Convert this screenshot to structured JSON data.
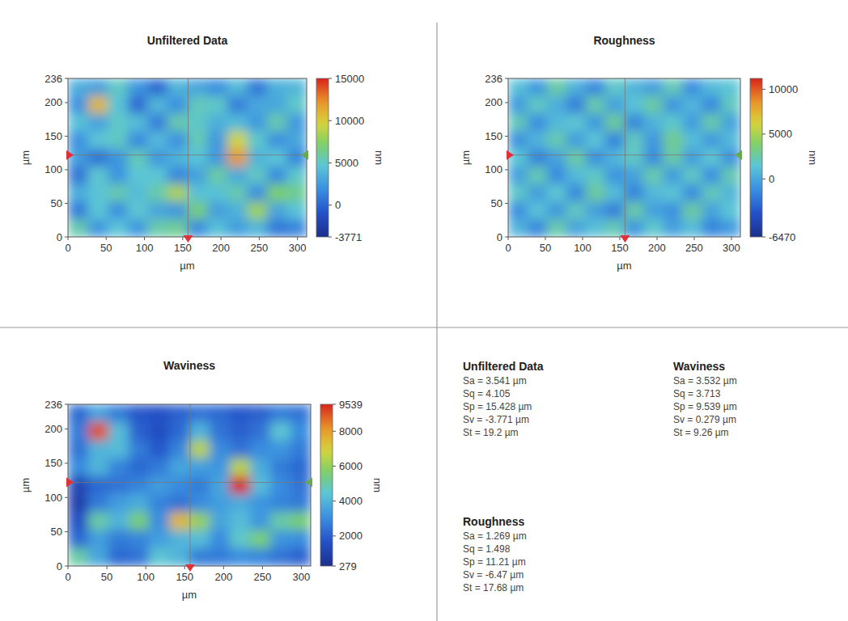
{
  "chart_data": [
    {
      "type": "heatmap",
      "title": "Unfiltered Data",
      "x_label": "µm",
      "y_label": "µm",
      "xlim": [
        0,
        312
      ],
      "ylim": [
        0,
        236
      ],
      "xticks": [
        0,
        50,
        100,
        150,
        200,
        250,
        300
      ],
      "yticks": [
        0,
        50,
        100,
        150,
        200,
        236
      ],
      "colorbar_label": "nm",
      "colorbar_range": [
        -3771,
        15000
      ],
      "colorbar_ticks": [
        15000,
        10000,
        5000,
        0,
        -3771
      ],
      "crosshair": {
        "x": 157,
        "y": 122
      },
      "cells": [
        [
          3400,
          2700,
          5100,
          2200,
          100,
          3800,
          3000,
          1800,
          4000,
          800,
          3500,
          3900
        ],
        [
          2000,
          10900,
          4500,
          200,
          3900,
          1900,
          5300,
          5000,
          1100,
          3100,
          3100,
          5000
        ],
        [
          4500,
          2800,
          5000,
          4200,
          1100,
          5600,
          5000,
          3500,
          4100,
          2400,
          5600,
          2300
        ],
        [
          2000,
          4600,
          5100,
          1700,
          4000,
          2000,
          5400,
          2400,
          9500,
          4900,
          1900,
          3100
        ],
        [
          2700,
          500,
          2200,
          5400,
          2300,
          3700,
          4500,
          2300,
          12000,
          3700,
          4600,
          1400
        ],
        [
          600,
          4800,
          2100,
          4700,
          4600,
          1500,
          2800,
          5800,
          3200,
          5100,
          1700,
          4900
        ],
        [
          3400,
          4500,
          5600,
          4100,
          5700,
          8500,
          4400,
          4400,
          5600,
          1900,
          7100,
          6200
        ],
        [
          1000,
          4700,
          1900,
          4800,
          3000,
          2200,
          6700,
          2700,
          3600,
          8100,
          3000,
          4500
        ],
        [
          5600,
          2100,
          4600,
          2200,
          5700,
          6200,
          1700,
          4300,
          2600,
          3800,
          800,
          1300
        ]
      ]
    },
    {
      "type": "heatmap",
      "title": "Roughness",
      "x_label": "µm",
      "y_label": "µm",
      "xlim": [
        0,
        312
      ],
      "ylim": [
        0,
        236
      ],
      "xticks": [
        0,
        50,
        100,
        150,
        200,
        250,
        300
      ],
      "yticks": [
        0,
        50,
        100,
        150,
        200,
        236
      ],
      "colorbar_label": "nm",
      "colorbar_range": [
        -6470,
        11210
      ],
      "colorbar_ticks": [
        10000,
        5000,
        0,
        -6470
      ],
      "crosshair": {
        "x": 157,
        "y": 122
      },
      "cells": [
        [
          1200,
          -800,
          2500,
          400,
          -1500,
          1800,
          600,
          -400,
          2200,
          -1200,
          900,
          1500
        ],
        [
          -600,
          1900,
          300,
          -1800,
          2400,
          -300,
          1300,
          2600,
          -900,
          700,
          -1400,
          2000
        ],
        [
          2100,
          -1200,
          800,
          1600,
          -700,
          2800,
          -1500,
          500,
          1700,
          -600,
          2400,
          -300
        ],
        [
          -1000,
          600,
          2300,
          -500,
          1400,
          -1600,
          2000,
          -800,
          3000,
          1100,
          -700,
          900
        ],
        [
          1500,
          -1700,
          -200,
          2600,
          -1100,
          700,
          1900,
          -1300,
          2500,
          -500,
          1600,
          -1000
        ],
        [
          -400,
          2200,
          -1300,
          900,
          1800,
          -900,
          -200,
          2400,
          -600,
          1900,
          -1100,
          2300
        ],
        [
          1800,
          -500,
          1600,
          -1400,
          2700,
          1000,
          -1600,
          800,
          1400,
          -1300,
          2100,
          700
        ],
        [
          -1200,
          1300,
          -700,
          2000,
          -400,
          -1800,
          2500,
          -300,
          -1000,
          2600,
          -200,
          1500
        ],
        [
          600,
          -1500,
          2400,
          -200,
          1200,
          2200,
          -900,
          1700,
          -400,
          1000,
          -1600,
          -700
        ]
      ]
    },
    {
      "type": "heatmap",
      "title": "Waviness",
      "x_label": "µm",
      "y_label": "µm",
      "xlim": [
        0,
        312
      ],
      "ylim": [
        0,
        236
      ],
      "xticks": [
        0,
        50,
        100,
        150,
        200,
        250,
        300
      ],
      "yticks": [
        0,
        50,
        100,
        150,
        200,
        236
      ],
      "colorbar_label": "nm",
      "colorbar_range": [
        279,
        9539
      ],
      "colorbar_ticks": [
        9539,
        8000,
        6000,
        4000,
        2000,
        279
      ],
      "crosshair": {
        "x": 157,
        "y": 122
      },
      "cells": [
        [
          2200,
          3500,
          2600,
          1800,
          1600,
          2000,
          2400,
          2200,
          1800,
          2000,
          2600,
          2400
        ],
        [
          2600,
          9000,
          4200,
          2000,
          1500,
          2200,
          4000,
          2400,
          2000,
          2400,
          4500,
          3000
        ],
        [
          2400,
          4000,
          4200,
          2600,
          1800,
          2800,
          6500,
          3000,
          2400,
          3000,
          3200,
          2600
        ],
        [
          3000,
          4000,
          2800,
          2200,
          2600,
          3600,
          3400,
          3200,
          6500,
          3800,
          2600,
          2200
        ],
        [
          1200,
          2200,
          2400,
          2800,
          3400,
          3000,
          2600,
          3600,
          9539,
          4200,
          3000,
          2400
        ],
        [
          1000,
          2600,
          3400,
          3800,
          2800,
          2400,
          3000,
          3400,
          3800,
          3200,
          2800,
          2600
        ],
        [
          1600,
          5000,
          4000,
          5500,
          3000,
          7500,
          6000,
          3600,
          4200,
          3200,
          5000,
          5500
        ],
        [
          2200,
          3400,
          2600,
          2800,
          3400,
          4000,
          4200,
          3000,
          4600,
          5500,
          3200,
          3000
        ],
        [
          5000,
          3600,
          2200,
          2400,
          4500,
          4000,
          2600,
          2600,
          3000,
          2800,
          2400,
          2000
        ]
      ]
    }
  ],
  "statistics": [
    {
      "title": "Unfiltered Data",
      "lines": [
        "Sa = 3.541 µm",
        "Sq = 4.105",
        "Sp = 15.428 µm",
        "Sv = -3.771 µm",
        "St = 19.2 µm"
      ]
    },
    {
      "title": "Waviness",
      "lines": [
        "Sa = 3.532 µm",
        "Sq = 3.713",
        "Sp = 9.539 µm",
        "Sv = 0.279 µm",
        "St = 9.26 µm"
      ]
    },
    {
      "title": "Roughness",
      "lines": [
        "Sa = 1.269 µm",
        "Sq = 1.498",
        "Sp = 11.21 µm",
        "Sv = -6.47 µm",
        "St = 17.68 µm"
      ]
    }
  ]
}
